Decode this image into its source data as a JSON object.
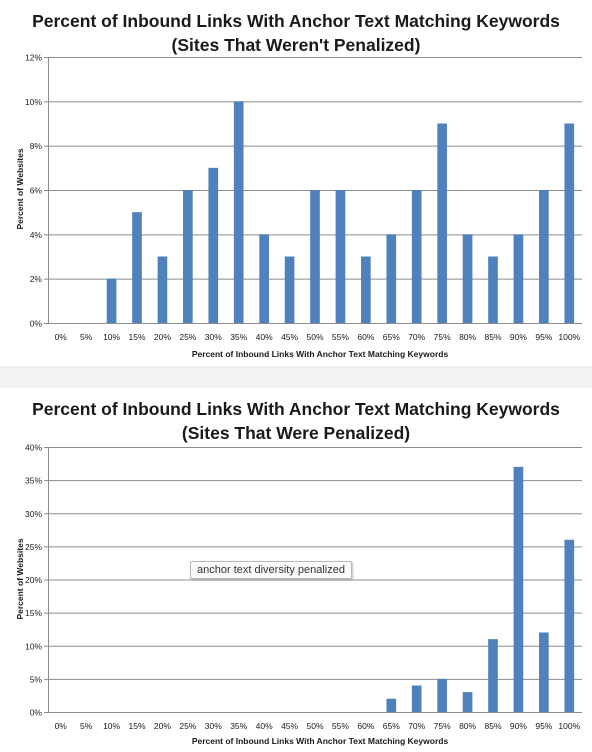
{
  "chart_data": [
    {
      "type": "bar",
      "title": [
        "Percent of Inbound Links With Anchor Text Matching Keywords",
        "(Sites That Weren't Penalized)"
      ],
      "xlabel": "Percent of Inbound  Links With Anchor Text Matching  Keywords",
      "ylabel": "Percent of Websites",
      "categories": [
        "0%",
        "5%",
        "10%",
        "15%",
        "20%",
        "25%",
        "30%",
        "35%",
        "40%",
        "45%",
        "50%",
        "55%",
        "60%",
        "65%",
        "70%",
        "75%",
        "80%",
        "85%",
        "90%",
        "95%",
        "100%"
      ],
      "values": [
        0,
        0,
        2,
        5,
        3,
        6,
        7,
        10,
        4,
        3,
        6,
        6,
        3,
        4,
        6,
        9,
        4,
        3,
        4,
        6,
        9
      ],
      "ylim": [
        0,
        12
      ],
      "yticks": [
        0,
        2,
        4,
        6,
        8,
        10,
        12
      ],
      "ytick_labels": [
        "0%",
        "2%",
        "4%",
        "6%",
        "8%",
        "10%",
        "12%"
      ],
      "grid": true,
      "bar_color": "#4f81bd"
    },
    {
      "type": "bar",
      "title": [
        "Percent of Inbound Links With Anchor Text Matching Keywords",
        "(Sites That Were Penalized)"
      ],
      "xlabel": "Percent of Inbound  Links With Anchor Text Matching  Keywords",
      "ylabel": "Percent of Websites",
      "categories": [
        "0%",
        "5%",
        "10%",
        "15%",
        "20%",
        "25%",
        "30%",
        "35%",
        "40%",
        "45%",
        "50%",
        "55%",
        "60%",
        "65%",
        "70%",
        "75%",
        "80%",
        "85%",
        "90%",
        "95%",
        "100%"
      ],
      "values": [
        0,
        0,
        0,
        0,
        0,
        0,
        0,
        0,
        0,
        0,
        0,
        0,
        0,
        2,
        4,
        5,
        3,
        11,
        37,
        12,
        26
      ],
      "ylim": [
        0,
        40
      ],
      "yticks": [
        0,
        5,
        10,
        15,
        20,
        25,
        30,
        35,
        40
      ],
      "ytick_labels": [
        "0%",
        "5%",
        "10%",
        "15%",
        "20%",
        "25%",
        "30%",
        "35%",
        "40%"
      ],
      "grid": true,
      "bar_color": "#4f81bd",
      "annotation": "anchor text diversity penalized"
    }
  ]
}
